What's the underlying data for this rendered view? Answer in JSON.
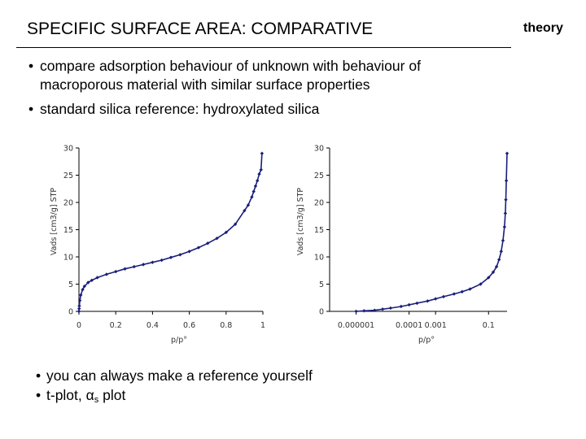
{
  "slide": {
    "title": "SPECIFIC SURFACE AREA: COMPARATIVE",
    "tag": "theory",
    "bullets": [
      "compare adsorption behaviour of unknown with behaviour of",
      "macroporous material with similar surface properties",
      "standard silica reference: hydroxylated silica"
    ],
    "bottom_bullets": {
      "line1": "you can always make a reference yourself",
      "line2_prefix": "t-plot,",
      "line2_symbol": "α",
      "line2_subscript": "s",
      "line2_suffix": "plot"
    },
    "bullet_glyph": "•"
  },
  "chart_data": [
    {
      "type": "line",
      "xlabel": "p/p°",
      "ylabel": "Vads [cm3/g] STP",
      "xscale": "linear",
      "xlim": [
        0,
        1
      ],
      "ylim": [
        0,
        30
      ],
      "xticks": [
        0,
        0.2,
        0.4,
        0.6,
        0.8,
        1
      ],
      "xtick_labels": [
        "0",
        "0.2",
        "0.4",
        "0.6",
        "0.8",
        "1"
      ],
      "yticks": [
        0,
        5,
        10,
        15,
        20,
        25,
        30
      ],
      "ytick_labels": [
        "0",
        "5",
        "10",
        "15",
        "20",
        "25",
        "30"
      ],
      "color": "#1a1f7a",
      "marker": "diamond",
      "x": [
        0.0,
        0.001,
        0.002,
        0.005,
        0.01,
        0.02,
        0.03,
        0.05,
        0.07,
        0.1,
        0.15,
        0.2,
        0.25,
        0.3,
        0.35,
        0.4,
        0.45,
        0.5,
        0.55,
        0.6,
        0.65,
        0.7,
        0.75,
        0.8,
        0.85,
        0.9,
        0.92,
        0.94,
        0.95,
        0.96,
        0.97,
        0.98,
        0.99,
        0.995
      ],
      "y": [
        0.0,
        0.5,
        1.0,
        2.0,
        3.0,
        4.0,
        4.6,
        5.3,
        5.7,
        6.2,
        6.8,
        7.3,
        7.8,
        8.2,
        8.6,
        9.0,
        9.4,
        9.9,
        10.4,
        11.0,
        11.7,
        12.5,
        13.4,
        14.5,
        16.0,
        18.5,
        19.5,
        21.0,
        22.0,
        23.0,
        24.0,
        25.2,
        26.0,
        29.0
      ]
    },
    {
      "type": "line",
      "xlabel": "p/p°",
      "ylabel": "Vads [cm3/g] STP",
      "xscale": "log",
      "xlim": [
        1e-07,
        0.5
      ],
      "ylim": [
        0,
        30
      ],
      "xticks": [
        1e-06,
        0.0001,
        0.001,
        0.1
      ],
      "xtick_labels": [
        "0.000001",
        "0.0001",
        "0.001",
        "0.1"
      ],
      "yticks": [
        0,
        5,
        10,
        15,
        20,
        25,
        30
      ],
      "ytick_labels": [
        "0",
        "5",
        "10",
        "15",
        "20",
        "25",
        "30"
      ],
      "color": "#1a1f7a",
      "marker": "diamond",
      "x": [
        1e-06,
        2e-06,
        5e-06,
        1e-05,
        2e-05,
        5e-05,
        0.0001,
        0.0002,
        0.0005,
        0.001,
        0.002,
        0.005,
        0.01,
        0.02,
        0.05,
        0.1,
        0.15,
        0.2,
        0.25,
        0.3,
        0.35,
        0.4,
        0.43,
        0.45,
        0.47,
        0.5
      ],
      "y": [
        0.0,
        0.1,
        0.2,
        0.4,
        0.6,
        0.9,
        1.2,
        1.5,
        1.9,
        2.3,
        2.7,
        3.2,
        3.6,
        4.1,
        5.0,
        6.2,
        7.2,
        8.2,
        9.5,
        11.0,
        13.0,
        15.5,
        18.0,
        20.5,
        24.0,
        29.0
      ]
    }
  ]
}
